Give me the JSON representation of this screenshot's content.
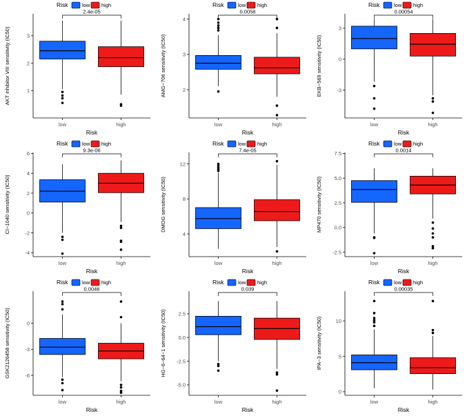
{
  "legend": {
    "title": "Risk",
    "low_label": "low",
    "high_label": "high"
  },
  "colors": {
    "low": "#1565FF",
    "high": "#EE1A1A",
    "stroke": "#000000"
  },
  "chart_data": [
    {
      "type": "box",
      "ylabel": "AKT inhibitor VIII sensitivity (IC50)",
      "xlabel": "Risk",
      "categories": [
        "low",
        "high"
      ],
      "ylim": [
        0,
        3.8
      ],
      "yticks": [
        1,
        2,
        3
      ],
      "pvalue": "2.4e-05",
      "series": [
        {
          "name": "low",
          "min": 1.05,
          "q1": 2.15,
          "median": 2.45,
          "q3": 2.8,
          "max": 3.55,
          "outliers": [
            0.95,
            0.82,
            0.72,
            0.55
          ]
        },
        {
          "name": "high",
          "min": 0.85,
          "q1": 1.87,
          "median": 2.2,
          "q3": 2.6,
          "max": 3.55,
          "outliers": [
            0.5,
            0.45
          ]
        }
      ]
    },
    {
      "type": "box",
      "ylabel": "AMG−706 sensitivity (IC50)",
      "xlabel": "Risk",
      "categories": [
        "low",
        "high"
      ],
      "ylim": [
        1.2,
        4.15
      ],
      "yticks": [
        2,
        3,
        4
      ],
      "pvalue": "0.0058",
      "series": [
        {
          "name": "low",
          "min": 2.1,
          "q1": 2.58,
          "median": 2.75,
          "q3": 2.97,
          "max": 3.55,
          "outliers": [
            4.0,
            3.9,
            3.82,
            3.75,
            3.68,
            1.95
          ]
        },
        {
          "name": "high",
          "min": 1.8,
          "q1": 2.45,
          "median": 2.62,
          "q3": 2.92,
          "max": 3.6,
          "outliers": [
            4.0,
            3.75,
            1.55,
            1.28
          ]
        }
      ]
    },
    {
      "type": "box",
      "ylabel": "EKB−569 sensitivity (IC50)",
      "xlabel": "Risk",
      "categories": [
        "low",
        "high"
      ],
      "ylim": [
        -5.7,
        4.4
      ],
      "yticks": [
        -3,
        0,
        3
      ],
      "pvalue": "0.00054",
      "series": [
        {
          "name": "low",
          "min": -2.2,
          "q1": 1.0,
          "median": 2.0,
          "q3": 3.2,
          "max": 3.9,
          "outliers": [
            -2.6,
            -3.8,
            -4.8
          ]
        },
        {
          "name": "high",
          "min": -3.5,
          "q1": 0.3,
          "median": 1.45,
          "q3": 2.5,
          "max": 3.9,
          "outliers": [
            -3.8,
            -4.1,
            -5.2
          ]
        }
      ]
    },
    {
      "type": "box",
      "ylabel": "CI−1040 sensitivity (IC50)",
      "xlabel": "Risk",
      "categories": [
        "low",
        "high"
      ],
      "ylim": [
        -4.4,
        6.1
      ],
      "yticks": [
        -4,
        -2,
        0,
        2,
        4,
        6
      ],
      "pvalue": "9.3e-06",
      "series": [
        {
          "name": "low",
          "min": -2.0,
          "q1": 1.1,
          "median": 2.2,
          "q3": 3.35,
          "max": 4.9,
          "outliers": [
            -2.4,
            -2.7,
            -4.1
          ]
        },
        {
          "name": "high",
          "min": -0.9,
          "q1": 2.05,
          "median": 3.0,
          "q3": 4.0,
          "max": 5.3,
          "outliers": [
            -1.3,
            -1.5,
            -2.8,
            -2.9,
            -3.7
          ]
        }
      ]
    },
    {
      "type": "box",
      "ylabel": "DMOG sensitivity (IC50)",
      "xlabel": "Risk",
      "categories": [
        "low",
        "high"
      ],
      "ylim": [
        1.4,
        13.3
      ],
      "yticks": [
        4,
        8,
        12
      ],
      "pvalue": "7.4e-05",
      "series": [
        {
          "name": "low",
          "min": 2.3,
          "q1": 4.6,
          "median": 5.75,
          "q3": 7.0,
          "max": 11.0,
          "outliers": [
            12.0,
            11.8,
            11.6,
            11.4,
            11.2
          ]
        },
        {
          "name": "high",
          "min": 2.5,
          "q1": 5.5,
          "median": 6.55,
          "q3": 7.9,
          "max": 11.9,
          "outliers": [
            12.3,
            2.0
          ]
        }
      ]
    },
    {
      "type": "box",
      "ylabel": "MP470 sensitivity (IC50)",
      "xlabel": "Risk",
      "categories": [
        "low",
        "high"
      ],
      "ylim": [
        -2.95,
        7.6
      ],
      "yticks": [
        -2.5,
        0.0,
        2.5,
        5.0,
        7.5
      ],
      "pvalue": "0.0014",
      "series": [
        {
          "name": "low",
          "min": -0.6,
          "q1": 2.55,
          "median": 3.85,
          "q3": 4.75,
          "max": 6.0,
          "outliers": [
            -1.0,
            -1.05,
            -2.6
          ]
        },
        {
          "name": "high",
          "min": 0.9,
          "q1": 3.4,
          "median": 4.3,
          "q3": 5.2,
          "max": 6.0,
          "outliers": [
            0.5,
            -0.1,
            -0.6,
            -1.0,
            -1.9,
            -2.1
          ]
        }
      ]
    },
    {
      "type": "box",
      "ylabel": "GSK2126458 sensitivity (IC50)",
      "xlabel": "Risk",
      "categories": [
        "low",
        "high"
      ],
      "ylim": [
        -8.3,
        3.7
      ],
      "yticks": [
        -6,
        -3,
        0
      ],
      "pvalue": "0.0046",
      "series": [
        {
          "name": "low",
          "min": -6.2,
          "q1": -3.6,
          "median": -2.75,
          "q3": -1.75,
          "max": 1.0,
          "outliers": [
            2.5,
            2.2,
            1.6,
            -6.5,
            -6.9,
            -7.7
          ]
        },
        {
          "name": "high",
          "min": -6.7,
          "q1": -4.1,
          "median": -3.2,
          "q3": -2.3,
          "max": 0.0,
          "outliers": [
            2.5,
            0.7,
            -7.1,
            -7.4,
            -7.8,
            -8.0
          ]
        }
      ]
    },
    {
      "type": "box",
      "ylabel": "HG−6−64−1 sensitivity (IC50)",
      "xlabel": "Risk",
      "categories": [
        "low",
        "high"
      ],
      "ylim": [
        -6.1,
        4.9
      ],
      "yticks": [
        -5.0,
        -2.5,
        0.0,
        2.5
      ],
      "pvalue": "0.039",
      "series": [
        {
          "name": "low",
          "min": -2.5,
          "q1": 0.3,
          "median": 1.15,
          "q3": 2.25,
          "max": 3.85,
          "outliers": [
            -2.8,
            -3.0,
            -3.5
          ]
        },
        {
          "name": "high",
          "min": -3.3,
          "q1": -0.2,
          "median": 0.95,
          "q3": 2.05,
          "max": 3.85,
          "outliers": [
            -3.7,
            -3.9,
            -5.6
          ]
        }
      ]
    },
    {
      "type": "box",
      "ylabel": "IPA−3 sensitivity (IC50)",
      "xlabel": "Risk",
      "categories": [
        "low",
        "high"
      ],
      "ylim": [
        -0.5,
        14.2
      ],
      "yticks": [
        0,
        5,
        10
      ],
      "pvalue": "0.00035",
      "series": [
        {
          "name": "low",
          "min": 0.5,
          "q1": 3.1,
          "median": 4.1,
          "q3": 5.2,
          "max": 8.8,
          "outliers": [
            12.8,
            11.1,
            10.4,
            10.1,
            9.8,
            9.3
          ]
        },
        {
          "name": "high",
          "min": 0.3,
          "q1": 2.55,
          "median": 3.4,
          "q3": 4.8,
          "max": 7.9,
          "outliers": [
            12.8,
            8.7,
            8.3
          ]
        }
      ]
    }
  ]
}
